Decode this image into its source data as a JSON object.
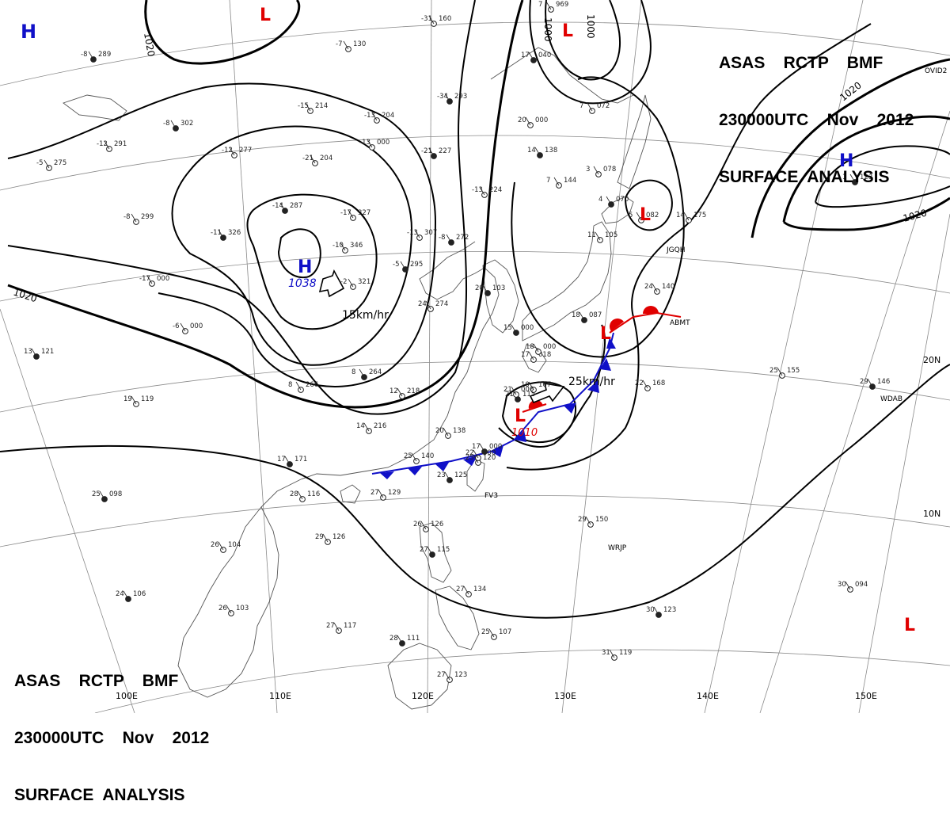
{
  "header": {
    "line1": "ASAS    RCTP    BMF",
    "line2": "230000UTC    Nov    2012",
    "line3": "SURFACE  ANALYSIS"
  },
  "isobar_labels": {
    "l1020_nw": "1020",
    "l1020_w": "1020",
    "l1020_ne": "1020",
    "l1020_e": "1020",
    "l1000_a": "1000",
    "l1000_b": "1000"
  },
  "pressure_centers": [
    {
      "id": "high-nw-corner",
      "symbol": "H",
      "color": "#1010c8"
    },
    {
      "id": "high-mongolia",
      "symbol": "H",
      "color": "#1010c8",
      "value": "1038"
    },
    {
      "id": "high-pacific",
      "symbol": "H",
      "color": "#1010c8"
    },
    {
      "id": "low-north",
      "symbol": "L",
      "color": "#e00000"
    },
    {
      "id": "low-okhotsk",
      "symbol": "L",
      "color": "#e00000"
    },
    {
      "id": "low-sakhalin",
      "symbol": "L",
      "color": "#e00000"
    },
    {
      "id": "low-japan",
      "symbol": "L",
      "color": "#e00000"
    },
    {
      "id": "low-ryukyu",
      "symbol": "L",
      "color": "#e00000",
      "value": "1010"
    },
    {
      "id": "low-se",
      "symbol": "L",
      "color": "#e00000"
    }
  ],
  "motion_labels": {
    "high": "15km/hr",
    "low": "25km/hr"
  },
  "grid_labels": {
    "lon": [
      "100E",
      "110E",
      "120E",
      "130E",
      "140E",
      "150E"
    ],
    "lat": [
      "20N",
      "10N"
    ]
  },
  "station_ids": {
    "jgqh": "JGQH",
    "abmt": "ABMT",
    "wrjp": "WRJP",
    "wdab": "WDAB",
    "ovid": "OVID2",
    "fv": "FV3"
  },
  "stations": [
    {
      "id": "s1",
      "t": "-8",
      "p": "289"
    },
    {
      "id": "s2",
      "t": "-12",
      "p": "291"
    },
    {
      "id": "s3",
      "t": "-5",
      "p": "275"
    },
    {
      "id": "s4",
      "t": "-8",
      "p": "302"
    },
    {
      "id": "s5",
      "t": "-12",
      "p": "277"
    },
    {
      "id": "s6",
      "t": "-21",
      "p": "204"
    },
    {
      "id": "s7",
      "t": "-14",
      "p": "287"
    },
    {
      "id": "s8",
      "t": "-17",
      "p": "327"
    },
    {
      "id": "s9",
      "t": "-10",
      "p": "346"
    },
    {
      "id": "s10",
      "t": "-11",
      "p": "326"
    },
    {
      "id": "s11",
      "t": "-8",
      "p": "299"
    },
    {
      "id": "s12",
      "t": "-13",
      "p": "204"
    },
    {
      "id": "s13",
      "t": "-21",
      "p": "227"
    },
    {
      "id": "s14",
      "t": "-13",
      "p": "224"
    },
    {
      "id": "s15",
      "t": "-13",
      "p": "307"
    },
    {
      "id": "s16",
      "t": "-8",
      "p": "272"
    },
    {
      "id": "s17",
      "t": "-7",
      "p": "130"
    },
    {
      "id": "s18",
      "t": "-15",
      "p": "214"
    },
    {
      "id": "s19",
      "t": "-34",
      "p": "293"
    },
    {
      "id": "s20",
      "t": "-31",
      "p": "160"
    },
    {
      "id": "s21",
      "t": "-2",
      "p": "321"
    },
    {
      "id": "s22",
      "t": "-5",
      "p": "295"
    },
    {
      "id": "s23",
      "t": "-17",
      "p": "000"
    },
    {
      "id": "s24",
      "t": "-6",
      "p": "000"
    },
    {
      "id": "s25",
      "t": "13",
      "p": "121"
    },
    {
      "id": "s26",
      "t": "19",
      "p": "119"
    },
    {
      "id": "s27",
      "t": "8",
      "p": "266"
    },
    {
      "id": "s28",
      "t": "8",
      "p": "264"
    },
    {
      "id": "s29",
      "t": "12",
      "p": "218"
    },
    {
      "id": "s30",
      "t": "14",
      "p": "216"
    },
    {
      "id": "s31",
      "t": "17",
      "p": "171"
    },
    {
      "id": "s32",
      "t": "20",
      "p": "138"
    },
    {
      "id": "s33",
      "t": "24",
      "p": "274"
    },
    {
      "id": "s34",
      "t": "20",
      "p": "103"
    },
    {
      "id": "s35",
      "t": "25",
      "p": "140"
    },
    {
      "id": "s36",
      "t": "25",
      "p": "120"
    },
    {
      "id": "s37",
      "t": "23",
      "p": "125"
    },
    {
      "id": "s38",
      "t": "27",
      "p": "129"
    },
    {
      "id": "s39",
      "t": "28",
      "p": "116"
    },
    {
      "id": "s40",
      "t": "25",
      "p": "098"
    },
    {
      "id": "s41",
      "t": "26",
      "p": "104"
    },
    {
      "id": "s42",
      "t": "29",
      "p": "126"
    },
    {
      "id": "s43",
      "t": "24",
      "p": "106"
    },
    {
      "id": "s44",
      "t": "26",
      "p": "103"
    },
    {
      "id": "s45",
      "t": "27",
      "p": "117"
    },
    {
      "id": "s46",
      "t": "28",
      "p": "111"
    },
    {
      "id": "s47",
      "t": "27",
      "p": "123"
    },
    {
      "id": "s48",
      "t": "26",
      "p": "126"
    },
    {
      "id": "s49",
      "t": "27",
      "p": "115"
    },
    {
      "id": "s50",
      "t": "27",
      "p": "134"
    },
    {
      "id": "s51",
      "t": "25",
      "p": "107"
    },
    {
      "id": "s52",
      "t": "21",
      "p": "115"
    },
    {
      "id": "s53",
      "t": "22",
      "p": "168"
    },
    {
      "id": "s54",
      "t": "25",
      "p": "155"
    },
    {
      "id": "s55",
      "t": "29",
      "p": "146"
    },
    {
      "id": "s56",
      "t": "29",
      "p": "150"
    },
    {
      "id": "s57",
      "t": "30",
      "p": "094"
    },
    {
      "id": "s58",
      "t": "30",
      "p": "123"
    },
    {
      "id": "s59",
      "t": "31",
      "p": "119"
    },
    {
      "id": "s60",
      "t": "17",
      "p": "018"
    },
    {
      "id": "s61",
      "t": "18",
      "p": "087"
    },
    {
      "id": "s62",
      "t": "14",
      "p": "175"
    },
    {
      "id": "s63",
      "t": "5",
      "p": "082"
    },
    {
      "id": "s64",
      "t": "4",
      "p": "070"
    },
    {
      "id": "s65",
      "t": "3",
      "p": "078"
    },
    {
      "id": "s66",
      "t": "7",
      "p": "144"
    },
    {
      "id": "s67",
      "t": "14",
      "p": "138"
    },
    {
      "id": "s68",
      "t": "20",
      "p": "000"
    },
    {
      "id": "s69",
      "t": "7",
      "p": "072"
    },
    {
      "id": "s70",
      "t": "17",
      "p": "040"
    },
    {
      "id": "s71",
      "t": "7",
      "p": "969"
    },
    {
      "id": "s72",
      "t": "11",
      "p": "105"
    },
    {
      "id": "s73",
      "t": "1",
      "p": "123"
    },
    {
      "id": "s74",
      "t": "24",
      "p": "140"
    },
    {
      "id": "s75",
      "t": "10",
      "p": "107"
    },
    {
      "id": "s76",
      "t": "15",
      "p": "000"
    },
    {
      "id": "s77",
      "t": "18",
      "p": "000"
    },
    {
      "id": "s78",
      "t": "21",
      "p": "000"
    },
    {
      "id": "s79",
      "t": "17",
      "p": "000"
    },
    {
      "id": "s80",
      "t": "22",
      "p": "000"
    },
    {
      "id": "s81",
      "t": "-13",
      "p": "000"
    }
  ]
}
